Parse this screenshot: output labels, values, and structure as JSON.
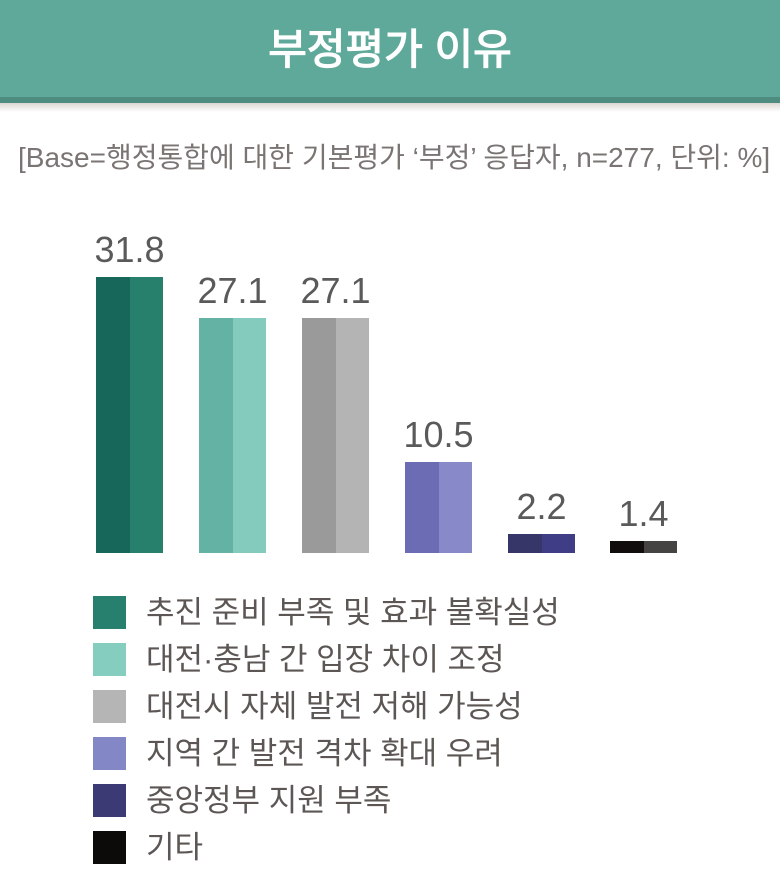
{
  "header": {
    "title": "부정평가 이유",
    "bg_color": "#5FA99B",
    "strip_color": "#4E8C80",
    "title_color": "#FFFFFF"
  },
  "base_note": "[Base=행정통합에 대한 기본평가 ‘부정’ 응답자, n=277, 단위: %]",
  "chart_data": {
    "type": "bar",
    "title": "부정평가 이유",
    "base_note": "[Base=행정통합에 대한 기본평가 ‘부정’ 응답자, n=277, 단위: %]",
    "n": 277,
    "unit": "%",
    "categories": [
      "추진 준비 부족 및 효과 불확실성",
      "대전·충남 간 입장 차이 조정",
      "대전시 자체 발전 저해 가능성",
      "지역 간 발전 격차 확대 우려",
      "중앙정부 지원 부족",
      "기타"
    ],
    "values": [
      31.8,
      27.1,
      27.1,
      10.5,
      2.2,
      1.4
    ],
    "value_labels": [
      "31.8",
      "27.1",
      "27.1",
      "10.5",
      "2.2",
      "1.4"
    ],
    "bar_colors": [
      {
        "dark": "#17685A",
        "light": "#26806C",
        "swatch": "#27806E"
      },
      {
        "dark": "#64B2A4",
        "light": "#85CBBD",
        "swatch": "#85CDBE"
      },
      {
        "dark": "#9A9A9A",
        "light": "#B4B4B4",
        "swatch": "#B5B5B5"
      },
      {
        "dark": "#6C6CB4",
        "light": "#8889C8",
        "swatch": "#8487C6"
      },
      {
        "dark": "#373669",
        "light": "#3E3D86",
        "swatch": "#3B3A75"
      },
      {
        "dark": "#100D0C",
        "light": "#454443",
        "swatch": "#0D0A0A"
      }
    ],
    "value_label_color": "#5A5A5A",
    "ylim": [
      0,
      35
    ],
    "grid": false,
    "axes_visible": false,
    "legend_position": "bottom-left"
  }
}
